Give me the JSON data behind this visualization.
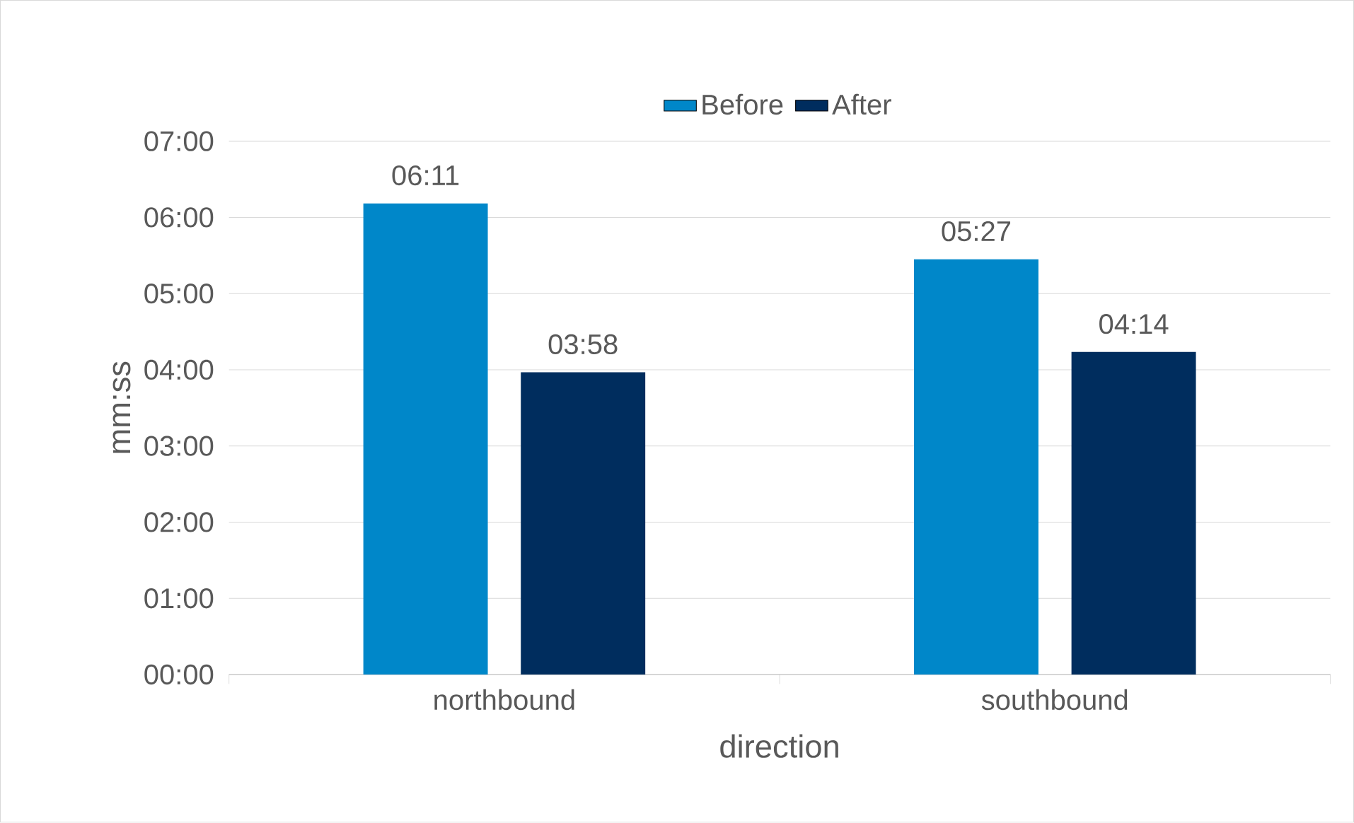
{
  "chart_data": {
    "type": "bar",
    "categories": [
      "northbound",
      "southbound"
    ],
    "series": [
      {
        "name": "Before",
        "color": "#0087c9",
        "values": [
          6.1833,
          5.45
        ],
        "value_labels": [
          "06:11",
          "05:27"
        ]
      },
      {
        "name": "After",
        "color": "#002d5e",
        "values": [
          3.9667,
          4.2333
        ],
        "value_labels": [
          "03:58",
          "04:14"
        ]
      }
    ],
    "xlabel": "direction",
    "ylabel": "mm:ss",
    "ylim": [
      0,
      7
    ],
    "yticks": [
      {
        "value": 0,
        "label": "00:00"
      },
      {
        "value": 1,
        "label": "01:00"
      },
      {
        "value": 2,
        "label": "02:00"
      },
      {
        "value": 3,
        "label": "03:00"
      },
      {
        "value": 4,
        "label": "04:00"
      },
      {
        "value": 5,
        "label": "05:00"
      },
      {
        "value": 6,
        "label": "06:00"
      },
      {
        "value": 7,
        "label": "07:00"
      }
    ],
    "grid": "y",
    "legend": "top"
  }
}
